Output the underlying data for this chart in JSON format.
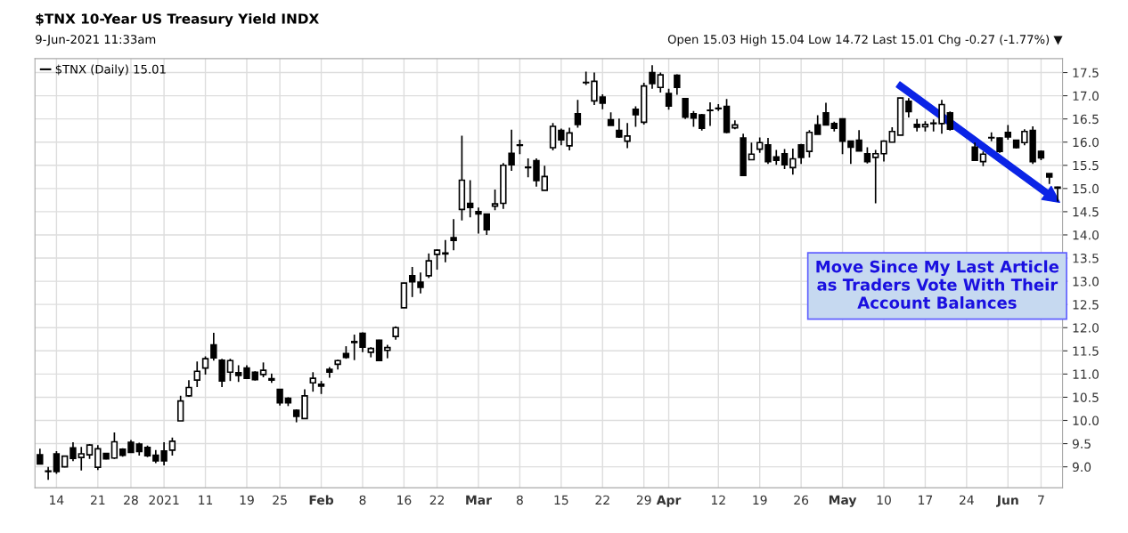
{
  "chart_data": {
    "type": "candlestick",
    "title": "$TNX 10-Year US Treasury Yield INDX",
    "subtitle": "9-Jun-2021 11:33am",
    "annotations": [
      "Open 15.03 High 15.04 Low 14.72 Last 15.01 Chg -0.27 (-1.77%) ▼",
      "Move Since My Last Article as Traders Vote With Their Account Balances"
    ],
    "legend": "top left",
    "grid": true,
    "ylim": [
      8.55,
      17.8
    ],
    "yticks": [
      {
        "value": 9,
        "label": "9.0"
      },
      {
        "value": 9.5,
        "label": "9.5"
      },
      {
        "value": 10,
        "label": "10.0"
      },
      {
        "value": 10.5,
        "label": "10.5"
      },
      {
        "value": 11,
        "label": "11.0"
      },
      {
        "value": 11.5,
        "label": "11.5"
      },
      {
        "value": 12,
        "label": "12.0"
      },
      {
        "value": 12.5,
        "label": "12.5"
      },
      {
        "value": 13,
        "label": "13.0"
      },
      {
        "value": 13.5,
        "label": "13.5"
      },
      {
        "value": 14,
        "label": "14.0"
      },
      {
        "value": 14.5,
        "label": "14.5"
      },
      {
        "value": 15,
        "label": "15.0"
      },
      {
        "value": 15.5,
        "label": "15.5"
      },
      {
        "value": 16,
        "label": "16.0"
      },
      {
        "value": 16.5,
        "label": "16.5"
      },
      {
        "value": 17,
        "label": "17.0"
      },
      {
        "value": 17.5,
        "label": "17.5"
      }
    ],
    "categories": [
      null,
      null,
      "14",
      null,
      null,
      null,
      null,
      "21",
      null,
      null,
      null,
      "28",
      null,
      null,
      null,
      "2021",
      null,
      null,
      null,
      null,
      "11",
      null,
      null,
      null,
      null,
      "19",
      null,
      null,
      null,
      "25",
      null,
      null,
      null,
      null,
      "Feb",
      null,
      null,
      null,
      null,
      "8",
      null,
      null,
      null,
      null,
      "16",
      null,
      null,
      null,
      "22",
      null,
      null,
      null,
      null,
      "Mar",
      null,
      null,
      null,
      null,
      "8",
      null,
      null,
      null,
      null,
      "15",
      null,
      null,
      null,
      null,
      "22",
      null,
      null,
      null,
      null,
      "29",
      null,
      null,
      "Apr",
      null,
      null,
      null,
      null,
      null,
      "12",
      null,
      null,
      null,
      null,
      "19",
      null,
      null,
      null,
      null,
      "26",
      null,
      null,
      null,
      null,
      "May",
      null,
      null,
      null,
      null,
      "10",
      null,
      null,
      null,
      null,
      "17",
      null,
      null,
      null,
      null,
      "24",
      null,
      null,
      null,
      null,
      "Jun",
      null,
      null,
      null,
      "7",
      null,
      null
    ],
    "series": [
      {
        "name": "$TNX (Daily) 15.01",
        "color": "#000000",
        "ohlc": [
          [
            9.26,
            9.39,
            9.05,
            9.06
          ],
          [
            8.91,
            9.0,
            8.72,
            8.9
          ],
          [
            9.28,
            9.34,
            8.85,
            8.9
          ],
          [
            9.0,
            9.23,
            8.99,
            9.23
          ],
          [
            9.41,
            9.53,
            9.12,
            9.18
          ],
          [
            9.2,
            9.43,
            8.92,
            9.28
          ],
          [
            9.26,
            9.49,
            9.17,
            9.47
          ],
          [
            8.99,
            9.47,
            8.93,
            9.39
          ],
          [
            9.29,
            9.3,
            9.16,
            9.17
          ],
          [
            9.19,
            9.74,
            9.17,
            9.54
          ],
          [
            9.38,
            9.4,
            9.22,
            9.25
          ],
          [
            9.53,
            9.58,
            9.3,
            9.31
          ],
          [
            9.49,
            9.52,
            9.24,
            9.33
          ],
          [
            9.42,
            9.46,
            9.21,
            9.24
          ],
          [
            9.25,
            9.36,
            9.08,
            9.13
          ],
          [
            9.34,
            9.53,
            9.03,
            9.13
          ],
          [
            9.36,
            9.63,
            9.24,
            9.55
          ],
          [
            9.99,
            10.53,
            9.99,
            10.42
          ],
          [
            10.53,
            10.87,
            10.51,
            10.71
          ],
          [
            10.87,
            11.27,
            10.72,
            11.06
          ],
          [
            11.13,
            11.38,
            10.99,
            11.33
          ],
          [
            11.63,
            11.89,
            11.29,
            11.35
          ],
          [
            11.3,
            11.33,
            10.72,
            10.85
          ],
          [
            11.04,
            11.33,
            10.85,
            11.29
          ],
          [
            11.03,
            11.19,
            10.83,
            10.97
          ],
          [
            11.13,
            11.19,
            10.9,
            10.91
          ],
          [
            11.04,
            11.06,
            10.86,
            10.88
          ],
          [
            10.99,
            11.25,
            10.93,
            11.08
          ],
          [
            10.9,
            11.01,
            10.81,
            10.87
          ],
          [
            10.67,
            10.68,
            10.32,
            10.38
          ],
          [
            10.48,
            10.5,
            10.31,
            10.38
          ],
          [
            10.22,
            10.24,
            9.96,
            10.09
          ],
          [
            10.04,
            10.67,
            10.04,
            10.53
          ],
          [
            10.81,
            11.04,
            10.62,
            10.91
          ],
          [
            10.78,
            10.85,
            10.57,
            10.74
          ],
          [
            11.1,
            11.15,
            10.92,
            11.04
          ],
          [
            11.21,
            11.31,
            11.1,
            11.29
          ],
          [
            11.44,
            11.6,
            11.33,
            11.36
          ],
          [
            11.7,
            11.85,
            11.3,
            11.68
          ],
          [
            11.88,
            11.9,
            11.47,
            11.58
          ],
          [
            11.47,
            11.58,
            11.36,
            11.55
          ],
          [
            11.73,
            11.74,
            11.29,
            11.29
          ],
          [
            11.51,
            11.63,
            11.34,
            11.57
          ],
          [
            11.81,
            12.03,
            11.74,
            12.0
          ],
          [
            12.43,
            12.97,
            12.43,
            12.96
          ],
          [
            13.12,
            13.31,
            12.66,
            12.99
          ],
          [
            12.98,
            13.19,
            12.74,
            12.87
          ],
          [
            13.12,
            13.6,
            13.07,
            13.44
          ],
          [
            13.58,
            13.69,
            13.25,
            13.67
          ],
          [
            13.61,
            13.89,
            13.41,
            13.59
          ],
          [
            13.94,
            14.34,
            13.67,
            13.88
          ],
          [
            14.55,
            16.14,
            14.31,
            15.18
          ],
          [
            14.68,
            15.18,
            14.38,
            14.59
          ],
          [
            14.5,
            14.59,
            14.03,
            14.45
          ],
          [
            14.45,
            14.46,
            14.0,
            14.11
          ],
          [
            14.62,
            14.98,
            14.53,
            14.67
          ],
          [
            14.68,
            15.55,
            14.56,
            15.5
          ],
          [
            15.76,
            16.27,
            15.38,
            15.51
          ],
          [
            15.94,
            16.05,
            15.74,
            15.93
          ],
          [
            15.45,
            15.65,
            15.24,
            15.46
          ],
          [
            15.6,
            15.65,
            15.04,
            15.17
          ],
          [
            14.96,
            15.49,
            14.96,
            15.26
          ],
          [
            15.88,
            16.41,
            15.82,
            16.34
          ],
          [
            16.25,
            16.29,
            15.93,
            16.05
          ],
          [
            15.92,
            16.31,
            15.82,
            16.2
          ],
          [
            16.61,
            16.91,
            16.31,
            16.38
          ],
          [
            17.29,
            17.52,
            17.23,
            17.28
          ],
          [
            16.89,
            17.5,
            16.8,
            17.31
          ],
          [
            16.97,
            17.03,
            16.71,
            16.84
          ],
          [
            16.48,
            16.64,
            16.36,
            16.36
          ],
          [
            16.25,
            16.51,
            16.09,
            16.11
          ],
          [
            16.02,
            16.41,
            15.87,
            16.13
          ],
          [
            16.71,
            16.77,
            16.33,
            16.59
          ],
          [
            16.43,
            17.28,
            16.38,
            17.21
          ],
          [
            17.5,
            17.66,
            17.15,
            17.26
          ],
          [
            17.18,
            17.5,
            17.07,
            17.45
          ],
          [
            17.05,
            17.15,
            16.7,
            16.78
          ],
          [
            17.44,
            17.46,
            17.02,
            17.18
          ],
          [
            16.94,
            16.95,
            16.5,
            16.54
          ],
          [
            16.61,
            16.67,
            16.33,
            16.52
          ],
          [
            16.59,
            16.61,
            16.25,
            16.3
          ],
          [
            16.68,
            16.86,
            16.35,
            16.69
          ],
          [
            16.72,
            16.82,
            16.67,
            16.73
          ],
          [
            16.77,
            16.93,
            16.19,
            16.21
          ],
          [
            16.31,
            16.47,
            16.28,
            16.37
          ],
          [
            16.09,
            16.18,
            15.28,
            15.28
          ],
          [
            15.62,
            15.99,
            15.61,
            15.74
          ],
          [
            15.85,
            16.1,
            15.77,
            15.99
          ],
          [
            15.94,
            16.09,
            15.53,
            15.58
          ],
          [
            15.68,
            15.83,
            15.51,
            15.61
          ],
          [
            15.75,
            15.85,
            15.42,
            15.51
          ],
          [
            15.45,
            15.86,
            15.3,
            15.64
          ],
          [
            15.94,
            15.96,
            15.53,
            15.67
          ],
          [
            15.8,
            16.26,
            15.67,
            16.21
          ],
          [
            16.37,
            16.58,
            16.17,
            16.17
          ],
          [
            16.63,
            16.85,
            16.37,
            16.37
          ],
          [
            16.4,
            16.44,
            16.23,
            16.3
          ],
          [
            16.5,
            16.5,
            15.74,
            16.02
          ],
          [
            16.02,
            16.02,
            15.53,
            15.89
          ],
          [
            16.04,
            16.26,
            15.81,
            15.81
          ],
          [
            15.75,
            15.89,
            15.54,
            15.58
          ],
          [
            15.67,
            15.83,
            14.68,
            15.75
          ],
          [
            15.75,
            16.04,
            15.58,
            16.02
          ],
          [
            16.0,
            16.32,
            16.0,
            16.23
          ],
          [
            16.15,
            16.96,
            16.15,
            16.95
          ],
          [
            16.88,
            16.95,
            16.53,
            16.66
          ],
          [
            16.38,
            16.5,
            16.23,
            16.32
          ],
          [
            16.33,
            16.45,
            16.23,
            16.38
          ],
          [
            16.4,
            16.49,
            16.23,
            16.41
          ],
          [
            16.4,
            16.91,
            16.18,
            16.81
          ],
          [
            16.63,
            16.66,
            16.25,
            16.28
          ],
          null,
          null,
          [
            15.89,
            15.99,
            15.6,
            15.61
          ],
          [
            15.58,
            15.8,
            15.48,
            15.74
          ],
          [
            16.09,
            16.21,
            16.02,
            16.1
          ],
          [
            16.09,
            16.1,
            15.77,
            15.8
          ],
          [
            16.21,
            16.37,
            16.05,
            16.11
          ],
          [
            16.04,
            16.05,
            15.86,
            15.88
          ],
          [
            15.99,
            16.28,
            15.93,
            16.23
          ],
          [
            16.25,
            16.34,
            15.53,
            15.58
          ],
          [
            15.8,
            15.82,
            15.61,
            15.66
          ],
          [
            15.32,
            15.32,
            15.1,
            15.25
          ],
          [
            15.03,
            15.04,
            14.72,
            15.01
          ]
        ]
      }
    ]
  }
}
